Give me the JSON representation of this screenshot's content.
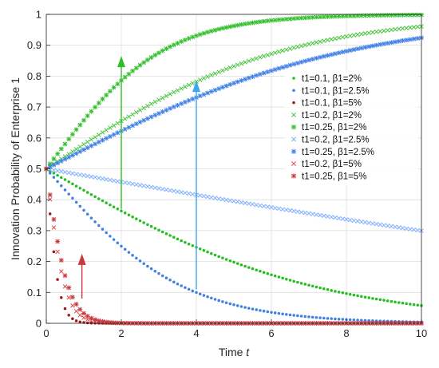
{
  "chart_data": {
    "type": "scatter",
    "title": "",
    "xlabel": "Time",
    "xlabel_var": "t",
    "ylabel": "Innovation Probability of Enterprise 1",
    "xlim": [
      0,
      10
    ],
    "ylim": [
      0,
      1
    ],
    "xticks": [
      "0",
      "2",
      "4",
      "6",
      "8",
      "10"
    ],
    "yticks": [
      "0",
      "0.1",
      "0.2",
      "0.3",
      "0.4",
      "0.5",
      "0.6",
      "0.7",
      "0.8",
      "0.9",
      "1"
    ],
    "grid": true,
    "legend_position": "right",
    "x0": 0.5,
    "series": [
      {
        "name": "t1=0.1, β1=2%",
        "marker": "dot",
        "color": "#22c01e",
        "rate": 0.28
      },
      {
        "name": "t1=0.1, β1=2.5%",
        "marker": "dot",
        "color": "#3f7fe6",
        "rate": 0.55
      },
      {
        "name": "t1=0.1, β1=5%",
        "marker": "dot",
        "color": "#a01418",
        "rate": 6.0
      },
      {
        "name": "t1=0.2, β1=2%",
        "marker": "cross",
        "color": "#45c43a",
        "rate": -0.32
      },
      {
        "name": "t1=0.25, β1=2%",
        "marker": "star",
        "color": "#2fbf2a",
        "rate": -0.65
      },
      {
        "name": "t1=0.2, β1=2.5%",
        "marker": "cross",
        "color": "#7fb0ff",
        "rate": 0.085
      },
      {
        "name": "t1=0.25, β1=2.5%",
        "marker": "star",
        "color": "#3f7fe6",
        "rate": -0.25
      },
      {
        "name": "t1=0.2, β1=5%",
        "marker": "cross",
        "color": "#e0484c",
        "rate": 4.0
      },
      {
        "name": "t1=0.25, β1=5%",
        "marker": "star",
        "color": "#c8383c",
        "rate": 3.4
      }
    ],
    "arrows": [
      {
        "color": "#3aa8f0",
        "x": 4,
        "y_from": 0.11,
        "y_to": 0.78
      },
      {
        "color": "#2fbf2a",
        "x": 2,
        "y_from": 0.37,
        "y_to": 0.86
      },
      {
        "color": "#c8383c",
        "x": 0.95,
        "y_from": 0.08,
        "y_to": 0.22
      }
    ]
  }
}
